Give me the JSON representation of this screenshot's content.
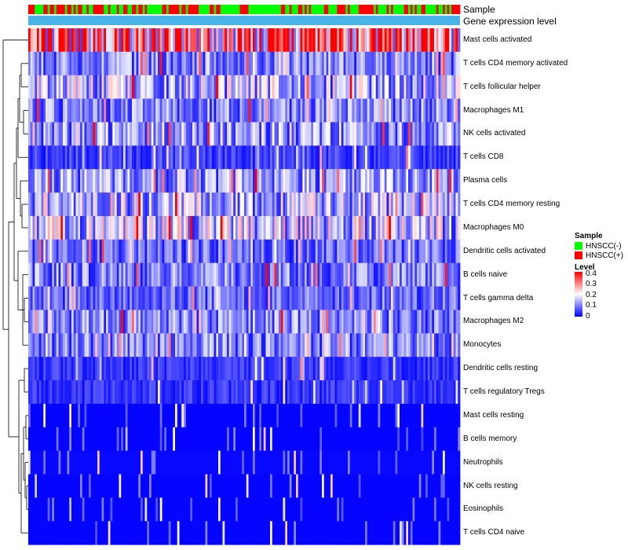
{
  "chart_data": {
    "type": "heatmap",
    "title": "",
    "sample_count": 200,
    "row_labels": [
      "Mast cells activated",
      "T cells CD4 memory activated",
      "T cells follicular helper",
      "Macrophages M1",
      "NK cells activated",
      "T cells CD8",
      "Plasma cells",
      "T cells CD4 memory resting",
      "Macrophages M0",
      "Dendritic cells activated",
      "B cells naive",
      "T cells gamma delta",
      "Macrophages M2",
      "Monocytes",
      "Dendritic cells resting",
      "T cells regulatory  Tregs",
      "Mast cells resting",
      "B cells memory",
      "Neutrophils",
      "NK cells resting",
      "Eosinophils",
      "T cells CD4 naive"
    ],
    "row_mean_levels": [
      0.33,
      0.1,
      0.14,
      0.1,
      0.12,
      0.05,
      0.12,
      0.14,
      0.15,
      0.08,
      0.1,
      0.08,
      0.1,
      0.1,
      0.04,
      0.04,
      0.01,
      0.01,
      0.02,
      0.01,
      0.01,
      0.01
    ],
    "annotations": {
      "sample_title": "Sample",
      "gene_title": "Gene expression level"
    },
    "legend": {
      "sample_title": "Sample",
      "sample_groups": [
        {
          "label": "HNSCC(-)",
          "color": "#00ff00"
        },
        {
          "label": "HNSCC(+)",
          "color": "#ff0000"
        }
      ],
      "level_title": "Level",
      "level_ticks": [
        "0.4",
        "0.3",
        "0.2",
        "0.1",
        "0"
      ],
      "level_range": [
        0,
        0.4
      ],
      "level_colors": [
        "#0000ff",
        "#ffffff",
        "#ff0000"
      ]
    },
    "gene_level_color": "#4ab3e8",
    "seed": 20231
  }
}
